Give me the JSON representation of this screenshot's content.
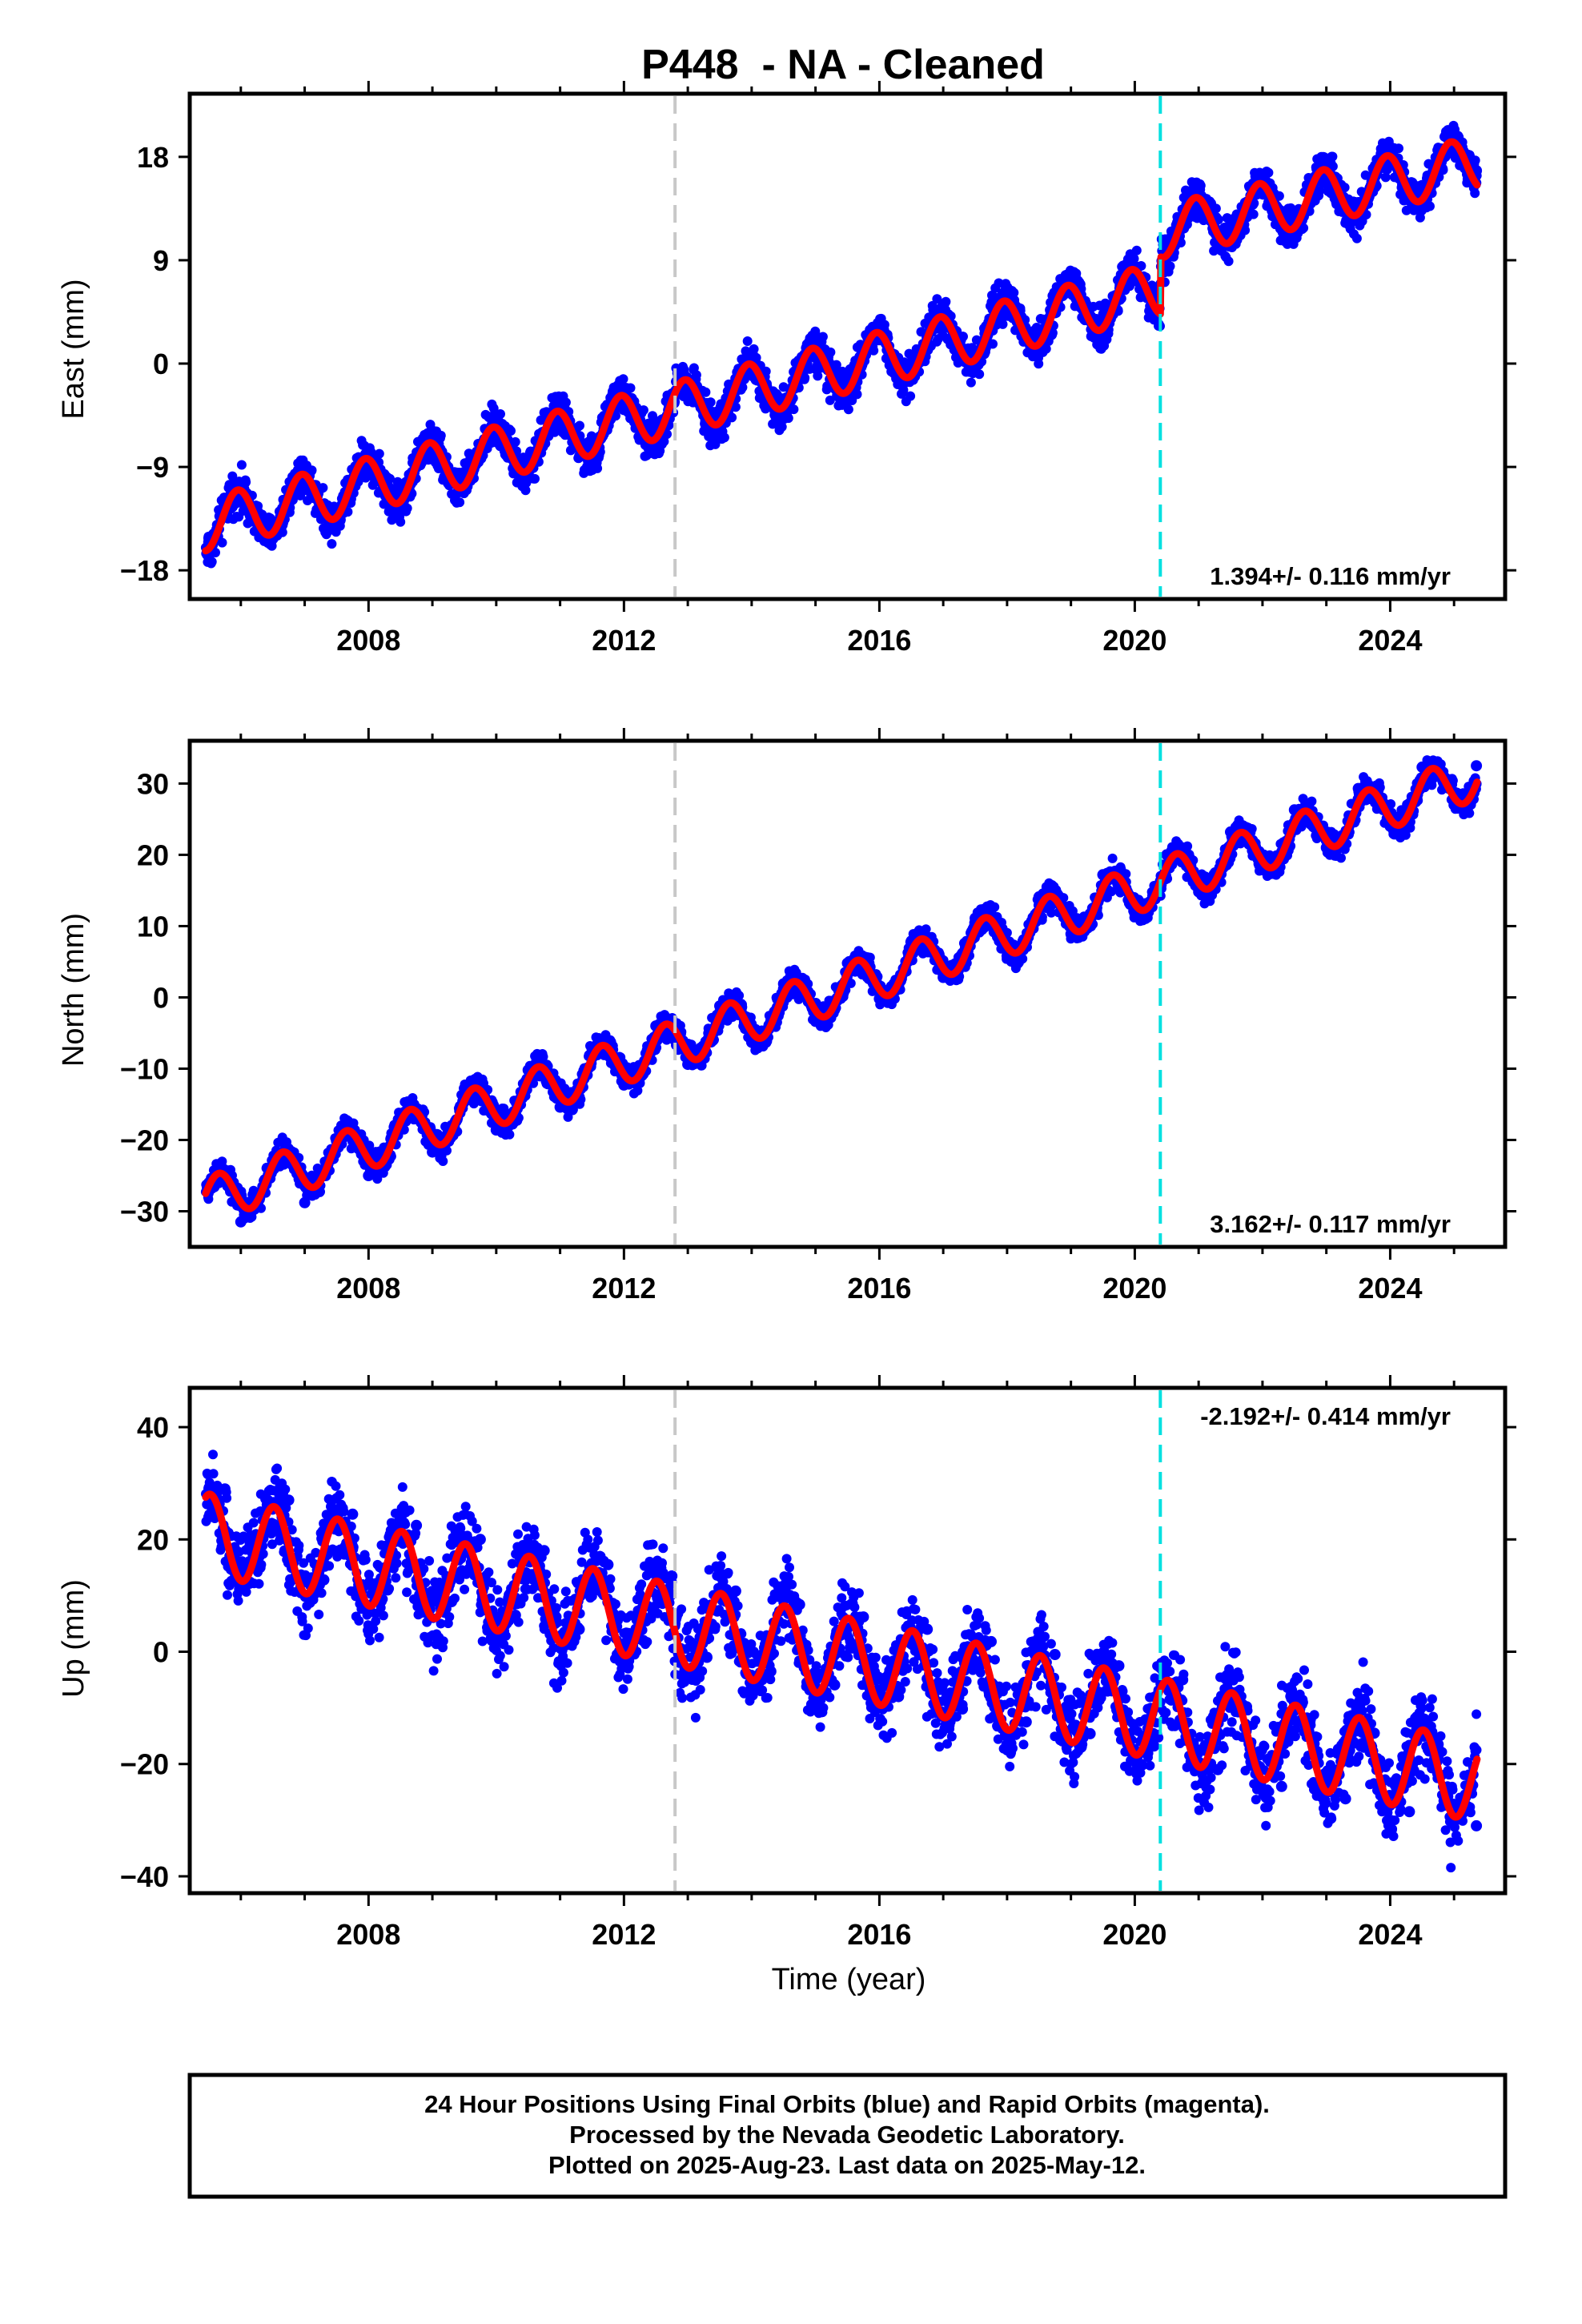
{
  "title": "P448  - NA - Cleaned",
  "x_axis_title": "Time (year)",
  "footer": {
    "line1": "24 Hour Positions Using Final Orbits (blue) and Rapid Orbits (magenta).",
    "line2": "Processed by the Nevada Geodetic Laboratory.",
    "line3": "Plotted on 2025-Aug-23. Last data on 2025-May-12."
  },
  "colors": {
    "data_points": "#0000ff",
    "model_fit": "#ff0000",
    "offset_equipment": "#c8c8c8",
    "offset_antenna": "#00e0e0"
  },
  "chart_data": [
    {
      "type": "scatter",
      "ylabel": "East (mm)",
      "xlim": [
        2005.2,
        2025.8
      ],
      "ylim": [
        -20.5,
        23.5
      ],
      "yticks": [
        18,
        9,
        0,
        -9,
        -18
      ],
      "ytick_labels": [
        "18",
        "9",
        "0",
        "−9",
        "−18"
      ],
      "xticks": [
        2008,
        2012,
        2016,
        2020,
        2024
      ],
      "xtick_labels": [
        "2008",
        "2012",
        "2016",
        "2020",
        "2024"
      ],
      "rate_text": "1.394+/- 0.116 mm/yr",
      "rate_position": "bottom-right",
      "offsets": [
        {
          "x": 2012.8,
          "kind": "equipment"
        },
        {
          "x": 2020.4,
          "kind": "antenna"
        }
      ],
      "model": {
        "start": 2005.45,
        "end": 2025.36,
        "trend": [
          [
            2005.45,
            -14.0
          ],
          [
            2020.4,
            6.5
          ],
          [
            2020.41,
            11.5
          ],
          [
            2025.36,
            17.5
          ]
        ],
        "amplitude": 2.3,
        "phase_year": 2005.95
      },
      "series": [
        {
          "values": [
            [
              2005.5,
              -15.2
            ],
            [
              2006.0,
              -11.8
            ],
            [
              2006.5,
              -15.1
            ],
            [
              2007.0,
              -10.5
            ],
            [
              2007.5,
              -13.6
            ],
            [
              2008.0,
              -9.4
            ],
            [
              2008.5,
              -12.0
            ],
            [
              2009.0,
              -8.3
            ],
            [
              2009.5,
              -11.1
            ],
            [
              2010.0,
              -6.8
            ],
            [
              2010.5,
              -10.0
            ],
            [
              2011.0,
              -5.4
            ],
            [
              2011.5,
              -8.2
            ],
            [
              2012.0,
              -4.0
            ],
            [
              2012.5,
              -6.8
            ],
            [
              2013.0,
              -2.4
            ],
            [
              2013.5,
              -5.1
            ],
            [
              2014.0,
              -0.8
            ],
            [
              2014.5,
              -3.6
            ],
            [
              2015.0,
              0.6
            ],
            [
              2015.5,
              -2.3
            ],
            [
              2016.0,
              2.1
            ],
            [
              2016.5,
              -0.6
            ],
            [
              2017.0,
              3.6
            ],
            [
              2017.5,
              0.9
            ],
            [
              2018.0,
              5.0
            ],
            [
              2018.5,
              2.1
            ],
            [
              2019.0,
              6.3
            ],
            [
              2019.5,
              3.6
            ],
            [
              2020.0,
              7.6
            ],
            [
              2020.35,
              4.8
            ],
            [
              2020.5,
              10.0
            ],
            [
              2021.0,
              15.0
            ],
            [
              2021.5,
              11.3
            ],
            [
              2022.0,
              15.8
            ],
            [
              2022.5,
              12.5
            ],
            [
              2023.0,
              17.4
            ],
            [
              2023.5,
              14.0
            ],
            [
              2024.0,
              18.6
            ],
            [
              2024.5,
              15.5
            ],
            [
              2025.0,
              19.8
            ],
            [
              2025.35,
              16.8
            ]
          ]
        }
      ]
    },
    {
      "type": "scatter",
      "ylabel": "North (mm)",
      "xlim": [
        2005.2,
        2025.8
      ],
      "ylim": [
        -35,
        36
      ],
      "yticks": [
        30,
        20,
        10,
        0,
        -10,
        -20,
        -30
      ],
      "ytick_labels": [
        "30",
        "20",
        "10",
        "0",
        "−10",
        "−20",
        "−30"
      ],
      "xticks": [
        2008,
        2012,
        2016,
        2020,
        2024
      ],
      "xtick_labels": [
        "2008",
        "2012",
        "2016",
        "2020",
        "2024"
      ],
      "rate_text": "3.162+/- 0.117 mm/yr",
      "rate_position": "bottom-right",
      "offsets": [
        {
          "x": 2012.8,
          "kind": "equipment"
        },
        {
          "x": 2020.4,
          "kind": "antenna"
        }
      ],
      "model": {
        "start": 2005.45,
        "end": 2025.36,
        "trend": [
          [
            2005.45,
            -28.5
          ],
          [
            2025.36,
            31.0
          ]
        ],
        "amplitude": 3.2,
        "phase_year": 2005.65
      },
      "series": [
        {
          "values": [
            [
              2005.5,
              -26.0
            ],
            [
              2006.0,
              -31.5
            ],
            [
              2006.5,
              -23.5
            ],
            [
              2007.0,
              -28.8
            ],
            [
              2007.5,
              -19.8
            ],
            [
              2008.0,
              -25.0
            ],
            [
              2008.5,
              -16.5
            ],
            [
              2009.0,
              -21.7
            ],
            [
              2009.5,
              -13.4
            ],
            [
              2010.0,
              -18.6
            ],
            [
              2010.5,
              -10.2
            ],
            [
              2011.0,
              -15.4
            ],
            [
              2011.5,
              -7.2
            ],
            [
              2012.0,
              -12.3
            ],
            [
              2012.5,
              -4.0
            ],
            [
              2013.0,
              -9.4
            ],
            [
              2013.5,
              -1.2
            ],
            [
              2014.0,
              -6.3
            ],
            [
              2014.5,
              1.9
            ],
            [
              2015.0,
              -3.3
            ],
            [
              2015.5,
              4.8
            ],
            [
              2016.0,
              -0.2
            ],
            [
              2016.5,
              7.9
            ],
            [
              2017.0,
              2.8
            ],
            [
              2017.5,
              11.1
            ],
            [
              2018.0,
              5.8
            ],
            [
              2018.5,
              14.1
            ],
            [
              2019.0,
              8.9
            ],
            [
              2019.5,
              17.2
            ],
            [
              2020.0,
              11.8
            ],
            [
              2020.5,
              20.0
            ],
            [
              2021.0,
              14.8
            ],
            [
              2021.5,
              23.2
            ],
            [
              2022.0,
              17.9
            ],
            [
              2022.5,
              26.3
            ],
            [
              2023.0,
              21.0
            ],
            [
              2023.5,
              29.3
            ],
            [
              2024.0,
              24.0
            ],
            [
              2024.5,
              32.3
            ],
            [
              2025.0,
              27.0
            ],
            [
              2025.35,
              32.5
            ]
          ]
        }
      ]
    },
    {
      "type": "scatter",
      "ylabel": "Up (mm)",
      "xlabel": "Time (year)",
      "xlim": [
        2005.2,
        2025.8
      ],
      "ylim": [
        -43,
        47
      ],
      "yticks": [
        40,
        20,
        0,
        -20,
        -40
      ],
      "ytick_labels": [
        "40",
        "20",
        "0",
        "−20",
        "−40"
      ],
      "xticks": [
        2008,
        2012,
        2016,
        2020,
        2024
      ],
      "xtick_labels": [
        "2008",
        "2012",
        "2016",
        "2020",
        "2024"
      ],
      "rate_text": "-2.192+/- 0.414 mm/yr",
      "rate_position": "top-right",
      "offsets": [
        {
          "x": 2012.8,
          "kind": "equipment"
        },
        {
          "x": 2020.4,
          "kind": "antenna"
        }
      ],
      "model": {
        "start": 2005.45,
        "end": 2025.36,
        "trend": [
          [
            2005.45,
            21.0
          ],
          [
            2025.36,
            -23.0
          ]
        ],
        "amplitude": 7.2,
        "phase_year": 2005.52
      },
      "series": [
        {
          "values": [
            [
              2005.5,
              24.0
            ],
            [
              2005.75,
              29.0
            ],
            [
              2006.3,
              15.0
            ],
            [
              2006.75,
              27.0
            ],
            [
              2007.3,
              12.8
            ],
            [
              2007.75,
              24.5
            ],
            [
              2008.3,
              11.0
            ],
            [
              2008.75,
              22.5
            ],
            [
              2009.3,
              8.9
            ],
            [
              2009.75,
              20.0
            ],
            [
              2010.3,
              6.5
            ],
            [
              2010.75,
              18.0
            ],
            [
              2011.3,
              4.0
            ],
            [
              2011.75,
              15.5
            ],
            [
              2012.3,
              2.0
            ],
            [
              2012.75,
              13.5
            ],
            [
              2013.3,
              -1.0
            ],
            [
              2013.75,
              10.8
            ],
            [
              2014.3,
              -3.5
            ],
            [
              2014.75,
              8.4
            ],
            [
              2015.3,
              -5.9
            ],
            [
              2015.75,
              6.2
            ],
            [
              2016.3,
              -8.0
            ],
            [
              2016.75,
              4.0
            ],
            [
              2017.3,
              -10.2
            ],
            [
              2017.75,
              1.8
            ],
            [
              2018.3,
              -12.5
            ],
            [
              2018.75,
              -0.5
            ],
            [
              2019.3,
              -14.6
            ],
            [
              2019.75,
              -2.5
            ],
            [
              2020.3,
              -16.8
            ],
            [
              2020.75,
              -5.0
            ],
            [
              2021.3,
              -21.0
            ],
            [
              2021.75,
              -9.8
            ],
            [
              2022.3,
              -24.0
            ],
            [
              2022.75,
              -12.0
            ],
            [
              2023.3,
              -26.2
            ],
            [
              2023.75,
              -14.5
            ],
            [
              2024.3,
              -28.5
            ],
            [
              2024.75,
              -16.5
            ],
            [
              2025.35,
              -31.0
            ]
          ]
        }
      ]
    }
  ]
}
